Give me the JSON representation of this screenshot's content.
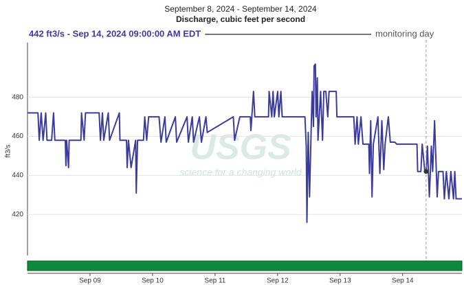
{
  "chart_data": {
    "type": "line",
    "title": "September 8, 2024 - September 14, 2024",
    "subtitle": "Discharge, cubic feet per second",
    "header": "442 ft3/s - Sep 14, 2024 09:00:00 AM EDT",
    "ylabel": "ft3/s",
    "color": "#3b3b9e",
    "grid": true,
    "watermark": {
      "logo": "USGS",
      "tagline": "science for a changing world"
    },
    "monitoring_day": {
      "label": "monitoring day",
      "x": "2024-09-14T09:00"
    },
    "xlim": [
      "2024-09-08T00:00",
      "2024-09-14T22:45"
    ],
    "xticks": [
      {
        "value": "2024-09-09T00:00",
        "label": "Sep 09"
      },
      {
        "value": "2024-09-10T00:00",
        "label": "Sep 10"
      },
      {
        "value": "2024-09-11T00:00",
        "label": "Sep 11"
      },
      {
        "value": "2024-09-12T00:00",
        "label": "Sep 12"
      },
      {
        "value": "2024-09-13T00:00",
        "label": "Sep 13"
      },
      {
        "value": "2024-09-14T00:00",
        "label": "Sep 14"
      }
    ],
    "ylim": [
      399,
      508
    ],
    "yticks": [
      420,
      440,
      460,
      480
    ],
    "x": [
      "2024-09-08T00:00",
      "2024-09-08T04:00",
      "2024-09-08T04:30",
      "2024-09-08T05:15",
      "2024-09-08T06:00",
      "2024-09-08T07:00",
      "2024-09-08T07:30",
      "2024-09-08T09:15",
      "2024-09-08T10:00",
      "2024-09-08T10:30",
      "2024-09-08T14:30",
      "2024-09-08T14:45",
      "2024-09-08T15:00",
      "2024-09-08T15:45",
      "2024-09-08T16:00",
      "2024-09-08T20:30",
      "2024-09-08T20:45",
      "2024-09-08T21:45",
      "2024-09-08T22:15",
      "2024-09-09T03:30",
      "2024-09-09T04:00",
      "2024-09-09T04:45",
      "2024-09-09T05:15",
      "2024-09-09T07:00",
      "2024-09-09T07:30",
      "2024-09-09T11:15",
      "2024-09-09T11:30",
      "2024-09-09T14:00",
      "2024-09-09T14:15",
      "2024-09-09T14:45",
      "2024-09-09T15:45",
      "2024-09-09T17:30",
      "2024-09-09T17:45",
      "2024-09-09T18:15",
      "2024-09-09T20:30",
      "2024-09-09T21:00",
      "2024-09-09T21:45",
      "2024-09-09T22:30",
      "2024-09-10T02:30",
      "2024-09-10T03:15",
      "2024-09-10T04:45",
      "2024-09-10T05:15",
      "2024-09-10T08:45",
      "2024-09-10T09:15",
      "2024-09-10T13:15",
      "2024-09-10T13:45",
      "2024-09-10T15:15",
      "2024-09-10T15:45",
      "2024-09-10T18:00",
      "2024-09-10T18:45",
      "2024-09-10T20:30",
      "2024-09-10T21:00",
      "2024-09-11T07:00",
      "2024-09-11T07:30",
      "2024-09-11T09:30",
      "2024-09-11T13:30",
      "2024-09-11T13:45",
      "2024-09-11T14:45",
      "2024-09-11T15:15",
      "2024-09-11T20:30",
      "2024-09-11T20:45",
      "2024-09-11T21:45",
      "2024-09-11T22:15",
      "2024-09-11T22:45",
      "2024-09-12T00:00",
      "2024-09-12T00:30",
      "2024-09-12T01:15",
      "2024-09-12T01:45",
      "2024-09-12T10:30",
      "2024-09-12T11:00",
      "2024-09-12T11:15",
      "2024-09-12T11:45",
      "2024-09-12T12:15",
      "2024-09-12T13:00",
      "2024-09-12T13:15",
      "2024-09-12T13:45",
      "2024-09-12T14:00",
      "2024-09-12T14:30",
      "2024-09-12T14:45",
      "2024-09-12T15:15",
      "2024-09-12T15:30",
      "2024-09-12T16:30",
      "2024-09-12T17:15",
      "2024-09-12T17:45",
      "2024-09-12T18:30",
      "2024-09-12T19:15",
      "2024-09-12T19:45",
      "2024-09-12T22:30",
      "2024-09-12T22:45",
      "2024-09-13T05:15",
      "2024-09-13T05:45",
      "2024-09-13T06:30",
      "2024-09-13T07:00",
      "2024-09-13T08:00",
      "2024-09-13T08:45",
      "2024-09-13T11:00",
      "2024-09-13T11:15",
      "2024-09-13T11:45",
      "2024-09-13T12:15",
      "2024-09-13T12:45",
      "2024-09-13T14:30",
      "2024-09-13T15:15",
      "2024-09-13T16:00",
      "2024-09-13T16:45",
      "2024-09-13T17:15",
      "2024-09-13T18:30",
      "2024-09-13T19:15",
      "2024-09-13T21:00",
      "2024-09-13T21:45",
      "2024-09-14T01:00",
      "2024-09-14T05:30",
      "2024-09-14T05:45",
      "2024-09-14T07:00",
      "2024-09-14T07:30",
      "2024-09-14T08:30",
      "2024-09-14T09:00",
      "2024-09-14T09:30",
      "2024-09-14T10:15",
      "2024-09-14T11:00",
      "2024-09-14T11:30",
      "2024-09-14T12:15",
      "2024-09-14T13:15",
      "2024-09-14T13:45",
      "2024-09-14T15:30",
      "2024-09-14T16:00",
      "2024-09-14T16:45",
      "2024-09-14T17:45",
      "2024-09-14T18:30",
      "2024-09-14T19:30",
      "2024-09-14T20:00",
      "2024-09-14T20:30",
      "2024-09-14T22:45"
    ],
    "values": [
      472,
      472,
      458,
      472,
      458,
      472,
      458,
      458,
      472,
      458,
      458,
      445,
      458,
      444,
      458,
      458,
      472,
      458,
      472,
      472,
      458,
      472,
      458,
      472,
      458,
      472,
      458,
      458,
      444,
      458,
      444,
      458,
      431,
      458,
      458,
      470,
      458,
      470,
      470,
      457,
      470,
      457,
      470,
      457,
      470,
      457,
      470,
      457,
      470,
      457,
      470,
      462,
      470,
      458,
      470,
      470,
      463,
      483,
      470,
      470,
      483,
      470,
      483,
      470,
      483,
      470,
      483,
      470,
      470,
      455,
      416,
      462,
      429,
      470,
      483,
      465,
      496,
      497,
      470,
      490,
      458,
      483,
      458,
      483,
      483,
      470,
      483,
      483,
      470,
      470,
      456,
      470,
      456,
      470,
      456,
      456,
      441,
      468,
      429,
      456,
      470,
      441,
      468,
      443,
      456,
      470,
      457,
      457,
      456,
      456,
      456,
      442,
      442,
      456,
      442,
      442,
      455,
      429,
      455,
      442,
      468,
      429,
      442,
      442,
      428,
      442,
      428,
      442,
      428,
      442,
      428,
      428
    ]
  }
}
